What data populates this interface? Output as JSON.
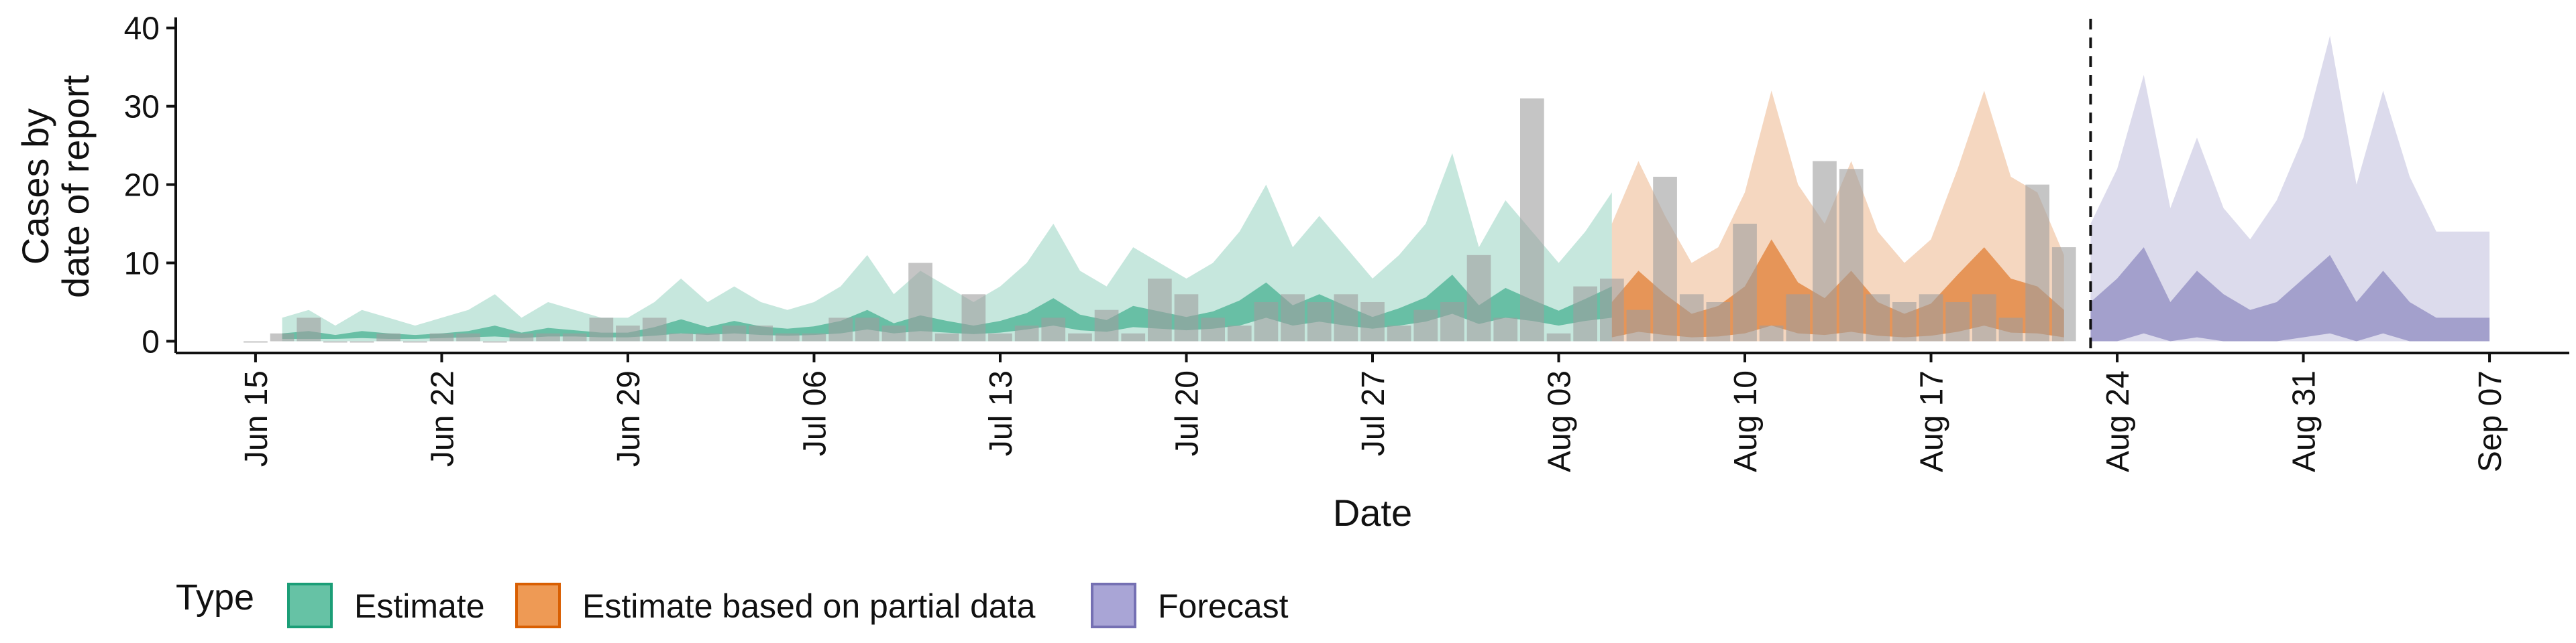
{
  "chart_data": {
    "type": "bar",
    "xlabel": "Date",
    "ylabel_lines": [
      "Cases by",
      "date of report"
    ],
    "x_ticks": [
      "Jun 15",
      "Jun 22",
      "Jun 29",
      "Jul 06",
      "Jul 13",
      "Jul 20",
      "Jul 27",
      "Aug 03",
      "Aug 10",
      "Aug 17",
      "Aug 24",
      "Aug 31",
      "Sep 07"
    ],
    "x_tick_dates": [
      "2020-06-15",
      "2020-06-22",
      "2020-06-29",
      "2020-07-06",
      "2020-07-13",
      "2020-07-20",
      "2020-07-27",
      "2020-08-03",
      "2020-08-10",
      "2020-08-17",
      "2020-08-24",
      "2020-08-31",
      "2020-09-07"
    ],
    "xlim": [
      "2020-06-12",
      "2020-09-10"
    ],
    "y_ticks": [
      0,
      10,
      20,
      30,
      40
    ],
    "ylim": [
      -1.5,
      41
    ],
    "forecast_cutoff": "2020-08-23",
    "legend": {
      "title": "Type",
      "position": "bottom",
      "items": [
        {
          "label": "Estimate",
          "fill": "#66c2a5",
          "stroke": "#1b9e77"
        },
        {
          "label": "Estimate based on partial data",
          "fill": "#ee9a55",
          "stroke": "#d95f02"
        },
        {
          "label": "Forecast",
          "fill": "#a9a5d6",
          "stroke": "#7570b3"
        }
      ]
    },
    "colors": {
      "Estimate": {
        "outer": "#1b9e77",
        "inner": "#1b9e77"
      },
      "Estimate based on partial data": {
        "outer": "#d95f02",
        "inner": "#d95f02"
      },
      "Forecast": {
        "outer": "#7570b3",
        "inner": "#7570b3"
      },
      "bars": "#9e9e9e"
    },
    "reported_cases": {
      "dates": [
        "2020-06-15",
        "2020-06-16",
        "2020-06-17",
        "2020-06-18",
        "2020-06-19",
        "2020-06-20",
        "2020-06-21",
        "2020-06-22",
        "2020-06-23",
        "2020-06-24",
        "2020-06-25",
        "2020-06-26",
        "2020-06-27",
        "2020-06-28",
        "2020-06-29",
        "2020-06-30",
        "2020-07-01",
        "2020-07-02",
        "2020-07-03",
        "2020-07-04",
        "2020-07-05",
        "2020-07-06",
        "2020-07-07",
        "2020-07-08",
        "2020-07-09",
        "2020-07-10",
        "2020-07-11",
        "2020-07-12",
        "2020-07-13",
        "2020-07-14",
        "2020-07-15",
        "2020-07-16",
        "2020-07-17",
        "2020-07-18",
        "2020-07-19",
        "2020-07-20",
        "2020-07-21",
        "2020-07-22",
        "2020-07-23",
        "2020-07-24",
        "2020-07-25",
        "2020-07-26",
        "2020-07-27",
        "2020-07-28",
        "2020-07-29",
        "2020-07-30",
        "2020-07-31",
        "2020-08-01",
        "2020-08-02",
        "2020-08-03",
        "2020-08-04",
        "2020-08-05",
        "2020-08-06",
        "2020-08-07",
        "2020-08-08",
        "2020-08-09",
        "2020-08-10",
        "2020-08-11",
        "2020-08-12",
        "2020-08-13",
        "2020-08-14",
        "2020-08-15",
        "2020-08-16",
        "2020-08-17",
        "2020-08-18",
        "2020-08-19",
        "2020-08-20",
        "2020-08-21",
        "2020-08-22"
      ],
      "values": [
        0,
        1,
        3,
        0,
        0,
        1,
        0,
        1,
        1,
        0,
        1,
        1,
        1,
        3,
        2,
        3,
        1,
        1,
        2,
        2,
        1,
        1,
        3,
        3,
        2,
        10,
        1,
        6,
        1,
        2,
        3,
        1,
        4,
        1,
        8,
        6,
        3,
        2,
        5,
        6,
        5,
        6,
        5,
        2,
        4,
        5,
        11,
        3,
        31,
        1,
        7,
        8,
        4,
        21,
        6,
        5,
        15,
        2,
        6,
        23,
        22,
        6,
        5,
        6,
        5,
        6,
        3,
        20,
        12
      ]
    },
    "estimate": {
      "dates": [
        "2020-06-16",
        "2020-06-17",
        "2020-06-18",
        "2020-06-19",
        "2020-06-20",
        "2020-06-21",
        "2020-06-22",
        "2020-06-23",
        "2020-06-24",
        "2020-06-25",
        "2020-06-26",
        "2020-06-27",
        "2020-06-28",
        "2020-06-29",
        "2020-06-30",
        "2020-07-01",
        "2020-07-02",
        "2020-07-03",
        "2020-07-04",
        "2020-07-05",
        "2020-07-06",
        "2020-07-07",
        "2020-07-08",
        "2020-07-09",
        "2020-07-10",
        "2020-07-11",
        "2020-07-12",
        "2020-07-13",
        "2020-07-14",
        "2020-07-15",
        "2020-07-16",
        "2020-07-17",
        "2020-07-18",
        "2020-07-19",
        "2020-07-20",
        "2020-07-21",
        "2020-07-22",
        "2020-07-23",
        "2020-07-24",
        "2020-07-25",
        "2020-07-26",
        "2020-07-27",
        "2020-07-28",
        "2020-07-29",
        "2020-07-30",
        "2020-07-31",
        "2020-08-01",
        "2020-08-02",
        "2020-08-03",
        "2020-08-04",
        "2020-08-05"
      ],
      "outer_upper": [
        3,
        4,
        2,
        4,
        3,
        2,
        3,
        4,
        6,
        3,
        5,
        4,
        3,
        3,
        5,
        8,
        5,
        7,
        5,
        4,
        5,
        7,
        11,
        6,
        9,
        7,
        5,
        7,
        10,
        15,
        9,
        7,
        12,
        10,
        8,
        10,
        14,
        20,
        12,
        16,
        12,
        8,
        11,
        15,
        24,
        12,
        18,
        14,
        10,
        14,
        19
      ],
      "inner_lower": [
        0.3,
        0.3,
        0.3,
        0.4,
        0.3,
        0.3,
        0.4,
        0.5,
        0.6,
        0.4,
        0.6,
        0.6,
        0.5,
        0.5,
        0.7,
        1,
        0.8,
        1,
        0.8,
        0.7,
        0.8,
        1,
        1.5,
        1,
        1.3,
        1.1,
        0.9,
        1.1,
        1.5,
        2,
        1.4,
        1.2,
        1.8,
        1.6,
        1.4,
        1.6,
        2,
        3,
        2,
        2.5,
        2,
        1.6,
        2,
        2.5,
        3.5,
        2.2,
        3,
        2.6,
        2,
        2.6,
        3
      ],
      "inner_upper": [
        1,
        1.3,
        0.8,
        1.3,
        1,
        0.8,
        1,
        1.3,
        2,
        1.1,
        1.7,
        1.4,
        1.1,
        1.1,
        1.8,
        2.8,
        1.8,
        2.6,
        1.9,
        1.6,
        1.9,
        2.6,
        4,
        2.3,
        3.3,
        2.6,
        2,
        2.6,
        3.6,
        5.5,
        3.4,
        2.7,
        4.5,
        3.8,
        3.1,
        3.8,
        5.2,
        7.5,
        4.6,
        6,
        4.5,
        3.1,
        4.2,
        5.6,
        8.5,
        4.6,
        6.8,
        5.3,
        3.9,
        5.4,
        7
      ]
    },
    "estimate_partial": {
      "dates": [
        "2020-08-05",
        "2020-08-06",
        "2020-08-07",
        "2020-08-08",
        "2020-08-09",
        "2020-08-10",
        "2020-08-11",
        "2020-08-12",
        "2020-08-13",
        "2020-08-14",
        "2020-08-15",
        "2020-08-16",
        "2020-08-17",
        "2020-08-18",
        "2020-08-19",
        "2020-08-20",
        "2020-08-21",
        "2020-08-22"
      ],
      "outer_upper": [
        15,
        23,
        16,
        10,
        12,
        19,
        32,
        20,
        15,
        23,
        14,
        10,
        13,
        22,
        32,
        21,
        19,
        11
      ],
      "inner_lower": [
        0.5,
        1.2,
        0.8,
        0.5,
        0.6,
        1,
        2,
        1,
        0.8,
        1.2,
        0.7,
        0.5,
        0.7,
        1.2,
        2,
        1.1,
        1,
        0.5
      ],
      "inner_upper": [
        5,
        9,
        6,
        3.5,
        4.5,
        7,
        13,
        7.5,
        5.5,
        9,
        5,
        3.5,
        4.8,
        8.5,
        12,
        8,
        7,
        4
      ]
    },
    "forecast": {
      "dates": [
        "2020-08-23",
        "2020-08-24",
        "2020-08-25",
        "2020-08-26",
        "2020-08-27",
        "2020-08-28",
        "2020-08-29",
        "2020-08-30",
        "2020-08-31",
        "2020-09-01",
        "2020-09-02",
        "2020-09-03",
        "2020-09-04",
        "2020-09-05",
        "2020-09-06",
        "2020-09-07"
      ],
      "outer_upper": [
        15,
        22,
        34,
        17,
        26,
        17,
        13,
        18,
        26,
        39,
        20,
        32,
        21,
        14,
        14,
        14
      ],
      "inner_lower": [
        0,
        0,
        1,
        0,
        0.5,
        0,
        0,
        0,
        0.5,
        1,
        0,
        1,
        0,
        0,
        0,
        0
      ],
      "inner_upper": [
        5,
        8,
        12,
        5,
        9,
        6,
        4,
        5,
        8,
        11,
        5,
        9,
        5,
        3,
        3,
        3
      ]
    }
  }
}
